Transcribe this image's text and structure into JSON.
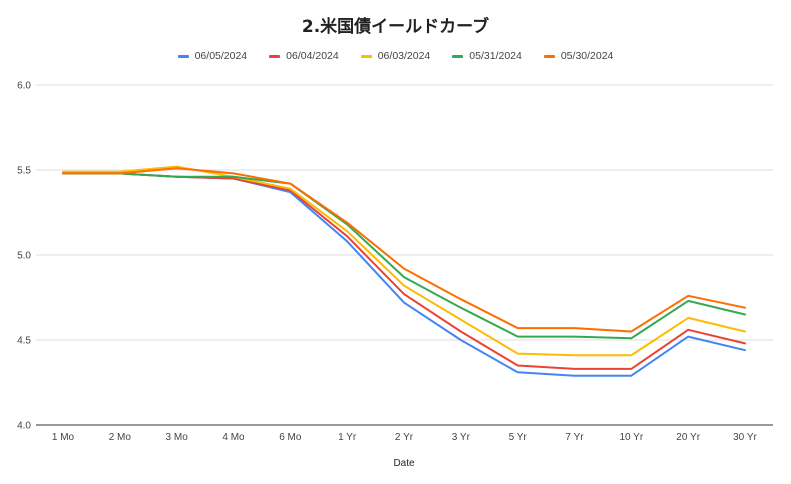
{
  "chart_data": {
    "type": "line",
    "title": "2.米国債イールドカーブ",
    "xlabel": "Date",
    "ylabel": "",
    "ylim": [
      4.0,
      6.0
    ],
    "yticks": [
      "4.0",
      "4.5",
      "5.0",
      "5.5",
      "6.0"
    ],
    "ytick_values": [
      4.0,
      4.5,
      5.0,
      5.5,
      6.0
    ],
    "grid": "horizontal",
    "legend_position": "top",
    "categories": [
      "1 Mo",
      "2 Mo",
      "3 Mo",
      "4 Mo",
      "6 Mo",
      "1 Yr",
      "2 Yr",
      "3 Yr",
      "5 Yr",
      "7 Yr",
      "10 Yr",
      "20 Yr",
      "30 Yr"
    ],
    "series": [
      {
        "name": "06/05/2024",
        "color": "#4285f4",
        "values": [
          5.48,
          5.48,
          5.46,
          5.45,
          5.37,
          5.08,
          4.72,
          4.5,
          4.31,
          4.29,
          4.29,
          4.52,
          4.44
        ]
      },
      {
        "name": "06/04/2024",
        "color": "#ea4335",
        "values": [
          5.48,
          5.48,
          5.46,
          5.45,
          5.38,
          5.11,
          4.77,
          4.55,
          4.35,
          4.33,
          4.33,
          4.56,
          4.48
        ]
      },
      {
        "name": "06/03/2024",
        "color": "#fbbc04",
        "values": [
          5.49,
          5.49,
          5.52,
          5.46,
          5.39,
          5.14,
          4.82,
          4.62,
          4.42,
          4.41,
          4.41,
          4.63,
          4.55
        ]
      },
      {
        "name": "05/31/2024",
        "color": "#34a853",
        "values": [
          5.48,
          5.48,
          5.46,
          5.46,
          5.42,
          5.18,
          4.87,
          4.69,
          4.52,
          4.52,
          4.51,
          4.73,
          4.65
        ]
      },
      {
        "name": "05/30/2024",
        "color": "#ff6d01",
        "values": [
          5.48,
          5.48,
          5.51,
          5.48,
          5.42,
          5.19,
          4.92,
          4.74,
          4.57,
          4.57,
          4.55,
          4.76,
          4.69
        ]
      }
    ]
  }
}
